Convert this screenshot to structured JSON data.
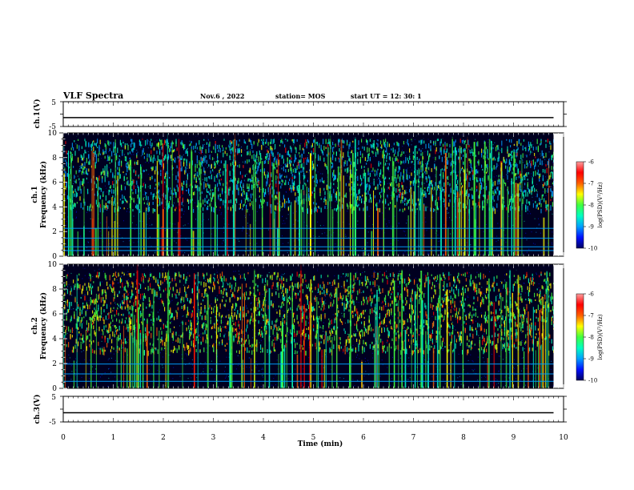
{
  "header": {
    "title": "VLF Spectra",
    "date": "Nov.6 , 2022",
    "station": "station= MOS",
    "start_ut": "start UT = 12: 30: 1"
  },
  "colors": {
    "strip_line": "#000000",
    "spectrogram_bg": "#000020",
    "colormap": [
      "#000060",
      "#0010ff",
      "#00a0ff",
      "#00ffc0",
      "#40ff40",
      "#ffff00",
      "#ff6000",
      "#ff0000",
      "#ffa0a0",
      "#ffffff"
    ]
  },
  "chart_data": [
    {
      "type": "line",
      "panel": "ch1-voltage",
      "ylabel": "ch.1(V)",
      "ylim": [
        -5,
        5
      ],
      "yticks": [
        "5",
        "-5"
      ],
      "xlim": [
        0,
        10
      ],
      "series": [
        {
          "x": [
            0,
            9.8
          ],
          "y": [
            -1.4,
            -1.4
          ]
        }
      ]
    },
    {
      "type": "heatmap",
      "panel": "ch1-spectrogram",
      "ylabel": "ch.1",
      "ylabel2": "Frequency (kHz)",
      "ylim": [
        0,
        10
      ],
      "yticks": [
        "0",
        "2",
        "4",
        "6",
        "8",
        "10"
      ],
      "xlim": [
        0,
        10
      ],
      "data_end_min": 9.8,
      "value_label": "log(PSD)(V²/Hz)",
      "value_range": [
        -10,
        -6
      ],
      "colorbar_ticks": [
        "-6",
        "-7",
        "-8",
        "-9",
        "-10"
      ],
      "bands_khz": [
        0.5,
        0.8,
        1.5,
        2.3
      ]
    },
    {
      "type": "heatmap",
      "panel": "ch2-spectrogram",
      "ylabel": "ch.2",
      "ylabel2": "Frequency (kHz)",
      "ylim": [
        0,
        10
      ],
      "yticks": [
        "0",
        "2",
        "4",
        "6",
        "8",
        "10"
      ],
      "xlim": [
        0,
        10
      ],
      "data_end_min": 9.8,
      "value_label": "log(PSD)(V²/Hz)",
      "value_range": [
        -10,
        -6
      ],
      "colorbar_ticks": [
        "-6",
        "-7",
        "-8",
        "-9",
        "-10"
      ],
      "bands_khz": [
        0.6,
        1.2,
        2.0
      ]
    },
    {
      "type": "line",
      "panel": "ch3-voltage",
      "ylabel": "ch.3(V)",
      "ylim": [
        -5,
        5
      ],
      "yticks": [
        "5",
        "-5"
      ],
      "xlim": [
        0,
        10
      ],
      "series": [
        {
          "x": [
            0,
            9.8
          ],
          "y": [
            -1.4,
            -1.4
          ]
        }
      ]
    }
  ],
  "x_axis": {
    "label": "Time (min)",
    "ticks": [
      "0",
      "1",
      "2",
      "3",
      "4",
      "5",
      "6",
      "7",
      "8",
      "9",
      "10"
    ]
  }
}
